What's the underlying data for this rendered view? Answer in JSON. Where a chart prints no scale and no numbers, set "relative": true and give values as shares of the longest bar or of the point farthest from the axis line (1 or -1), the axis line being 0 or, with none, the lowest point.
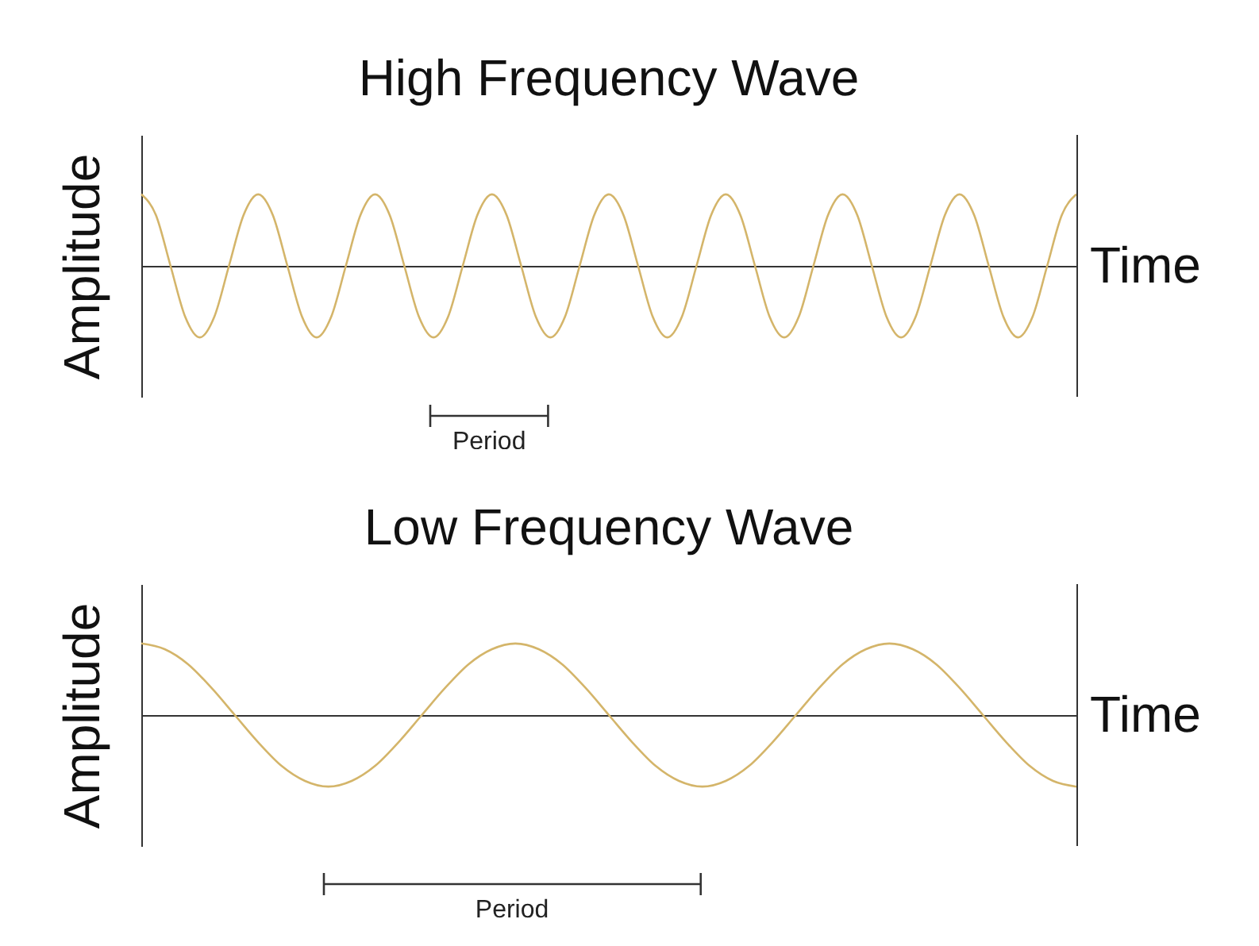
{
  "chart_data": [
    {
      "type": "line",
      "title": "High Frequency Wave",
      "xlabel": "Time",
      "ylabel": "Amplitude",
      "relative": true,
      "color": "#d4b56a",
      "annotations": [
        "Period"
      ],
      "categories": [
        null,
        null,
        null,
        null,
        null,
        null,
        null,
        null,
        null,
        null,
        null,
        null,
        null,
        null,
        null,
        null,
        null,
        null,
        null,
        null,
        null,
        null,
        null,
        null,
        null,
        null,
        null,
        null,
        null,
        null,
        null,
        null,
        null,
        null,
        null,
        null,
        null,
        null,
        null,
        null,
        null,
        null,
        null,
        null,
        null,
        null,
        null,
        null,
        null,
        null,
        null,
        null,
        null,
        null,
        null,
        null,
        null,
        null,
        null,
        null,
        null,
        null,
        null,
        null,
        null
      ],
      "values": [
        1,
        0.71,
        0,
        -0.71,
        -1,
        -0.71,
        0,
        0.71,
        1,
        0.71,
        0,
        -0.71,
        -1,
        -0.71,
        0,
        0.71,
        1,
        0.71,
        0,
        -0.71,
        -1,
        -0.71,
        0,
        0.71,
        1,
        0.71,
        0,
        -0.71,
        -1,
        -0.71,
        0,
        0.71,
        1,
        0.71,
        0,
        -0.71,
        -1,
        -0.71,
        0,
        0.71,
        1,
        0.71,
        0,
        -0.71,
        -1,
        -0.71,
        0,
        0.71,
        1,
        0.71,
        0,
        -0.71,
        -1,
        -0.71,
        0,
        0.71,
        1,
        0.71,
        0,
        -0.71,
        -1,
        -0.71,
        0,
        0.71,
        1
      ]
    },
    {
      "type": "line",
      "title": "Low Frequency Wave",
      "xlabel": "Time",
      "ylabel": "Amplitude",
      "relative": true,
      "color": "#d4b56a",
      "annotations": [
        "Period"
      ],
      "categories": [
        null,
        null,
        null,
        null,
        null,
        null,
        null,
        null,
        null,
        null,
        null,
        null,
        null,
        null,
        null,
        null,
        null,
        null,
        null,
        null,
        null,
        null,
        null,
        null,
        null,
        null,
        null,
        null,
        null,
        null,
        null,
        null,
        null,
        null,
        null,
        null,
        null,
        null,
        null,
        null,
        null
      ],
      "values": [
        1,
        0.92,
        0.71,
        0.38,
        0,
        -0.38,
        -0.71,
        -0.92,
        -1,
        -0.92,
        -0.71,
        -0.38,
        0,
        0.38,
        0.71,
        0.92,
        1,
        0.92,
        0.71,
        0.38,
        0,
        -0.38,
        -0.71,
        -0.92,
        -1,
        -0.92,
        -0.71,
        -0.38,
        0,
        0.38,
        0.71,
        0.92,
        1,
        0.92,
        0.71,
        0.38,
        0,
        -0.38,
        -0.71,
        -0.92,
        -1
      ]
    }
  ]
}
